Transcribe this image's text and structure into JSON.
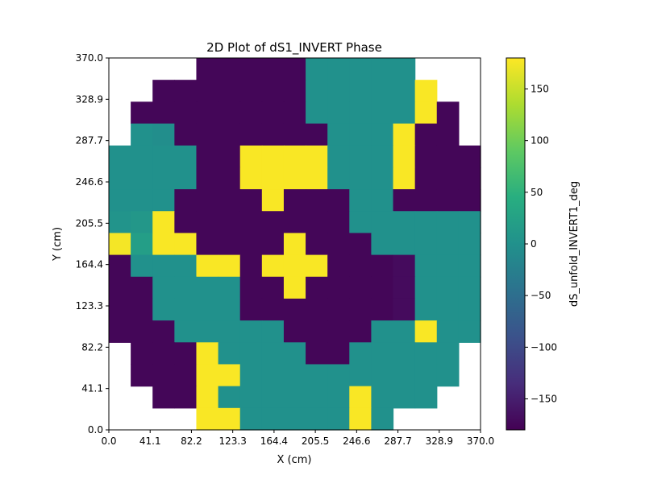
{
  "chart_data": {
    "type": "heatmap",
    "title": "2D Plot of dS1_INVERT Phase",
    "xlabel": "X (cm)",
    "ylabel": "Y (cm)",
    "colorbar_label": "dS_unfold_INVERT1_deg",
    "xlim": [
      0,
      370
    ],
    "ylim": [
      0,
      370
    ],
    "x_ticks": [
      "0.0",
      "41.1",
      "82.2",
      "123.3",
      "164.4",
      "205.5",
      "246.6",
      "287.7",
      "328.9",
      "370.0"
    ],
    "y_ticks": [
      "0.0",
      "41.1",
      "82.2",
      "123.3",
      "164.4",
      "205.5",
      "246.6",
      "287.7",
      "328.9",
      "370.0"
    ],
    "colorbar_range": [
      -180,
      180
    ],
    "colorbar_ticks": [
      "150",
      "100",
      "50",
      "0",
      "−50",
      "−100",
      "−150"
    ],
    "colorbar_tick_values": [
      150,
      100,
      50,
      0,
      -50,
      -100,
      -150
    ],
    "colormap": "viridis",
    "grid": {
      "cols": 17,
      "rows": 17,
      "cell_size": 21.76,
      "row_order": "top_to_bottom",
      "values": [
        [
          null,
          null,
          null,
          null,
          -175,
          -175,
          -175,
          -175,
          -175,
          0,
          0,
          0,
          0,
          0,
          null,
          null,
          null
        ],
        [
          null,
          null,
          -175,
          -175,
          -175,
          -175,
          -175,
          -175,
          -175,
          0,
          0,
          0,
          0,
          0,
          178,
          null,
          null
        ],
        [
          null,
          -175,
          -175,
          -175,
          -175,
          -175,
          -175,
          -175,
          -175,
          0,
          0,
          0,
          0,
          0,
          178,
          -175,
          null
        ],
        [
          null,
          0,
          -5,
          -175,
          -175,
          -175,
          -175,
          -175,
          -175,
          -175,
          0,
          0,
          0,
          178,
          -175,
          -175,
          null
        ],
        [
          0,
          0,
          0,
          0,
          -175,
          -175,
          178,
          178,
          178,
          178,
          0,
          0,
          0,
          178,
          -175,
          -175,
          -175
        ],
        [
          0,
          0,
          0,
          0,
          -175,
          -175,
          178,
          178,
          178,
          178,
          0,
          0,
          0,
          178,
          -175,
          -175,
          -175
        ],
        [
          0,
          0,
          0,
          -175,
          -175,
          -175,
          -175,
          178,
          -175,
          -175,
          -175,
          0,
          0,
          -175,
          -175,
          -175,
          -175
        ],
        [
          5,
          10,
          178,
          -175,
          -175,
          -175,
          -175,
          -175,
          -175,
          -175,
          -175,
          0,
          0,
          0,
          0,
          0,
          0
        ],
        [
          175,
          20,
          178,
          178,
          -175,
          -175,
          -175,
          -175,
          178,
          -175,
          -175,
          -175,
          0,
          0,
          0,
          0,
          0
        ],
        [
          -175,
          0,
          0,
          0,
          178,
          178,
          -175,
          178,
          178,
          178,
          -175,
          -175,
          -175,
          -170,
          0,
          0,
          0
        ],
        [
          -175,
          -175,
          0,
          0,
          0,
          0,
          -175,
          -175,
          178,
          -175,
          -175,
          -175,
          -175,
          -170,
          0,
          0,
          0
        ],
        [
          -175,
          -175,
          0,
          0,
          0,
          0,
          -175,
          -175,
          -175,
          -175,
          -175,
          -175,
          -175,
          -170,
          0,
          0,
          0
        ],
        [
          -175,
          -175,
          -175,
          0,
          0,
          0,
          0,
          0,
          -175,
          -175,
          -175,
          -175,
          0,
          0,
          178,
          0,
          0
        ],
        [
          null,
          -175,
          -175,
          -175,
          178,
          0,
          0,
          0,
          0,
          -175,
          -175,
          0,
          0,
          0,
          0,
          0,
          null
        ],
        [
          null,
          -175,
          -175,
          -175,
          178,
          178,
          0,
          0,
          0,
          0,
          0,
          0,
          0,
          0,
          0,
          0,
          null
        ],
        [
          null,
          null,
          -175,
          -175,
          178,
          0,
          0,
          0,
          0,
          0,
          0,
          178,
          0,
          0,
          0,
          null,
          null
        ],
        [
          null,
          null,
          null,
          null,
          178,
          178,
          0,
          0,
          0,
          0,
          0,
          178,
          0,
          null,
          null,
          null,
          null
        ]
      ]
    }
  }
}
